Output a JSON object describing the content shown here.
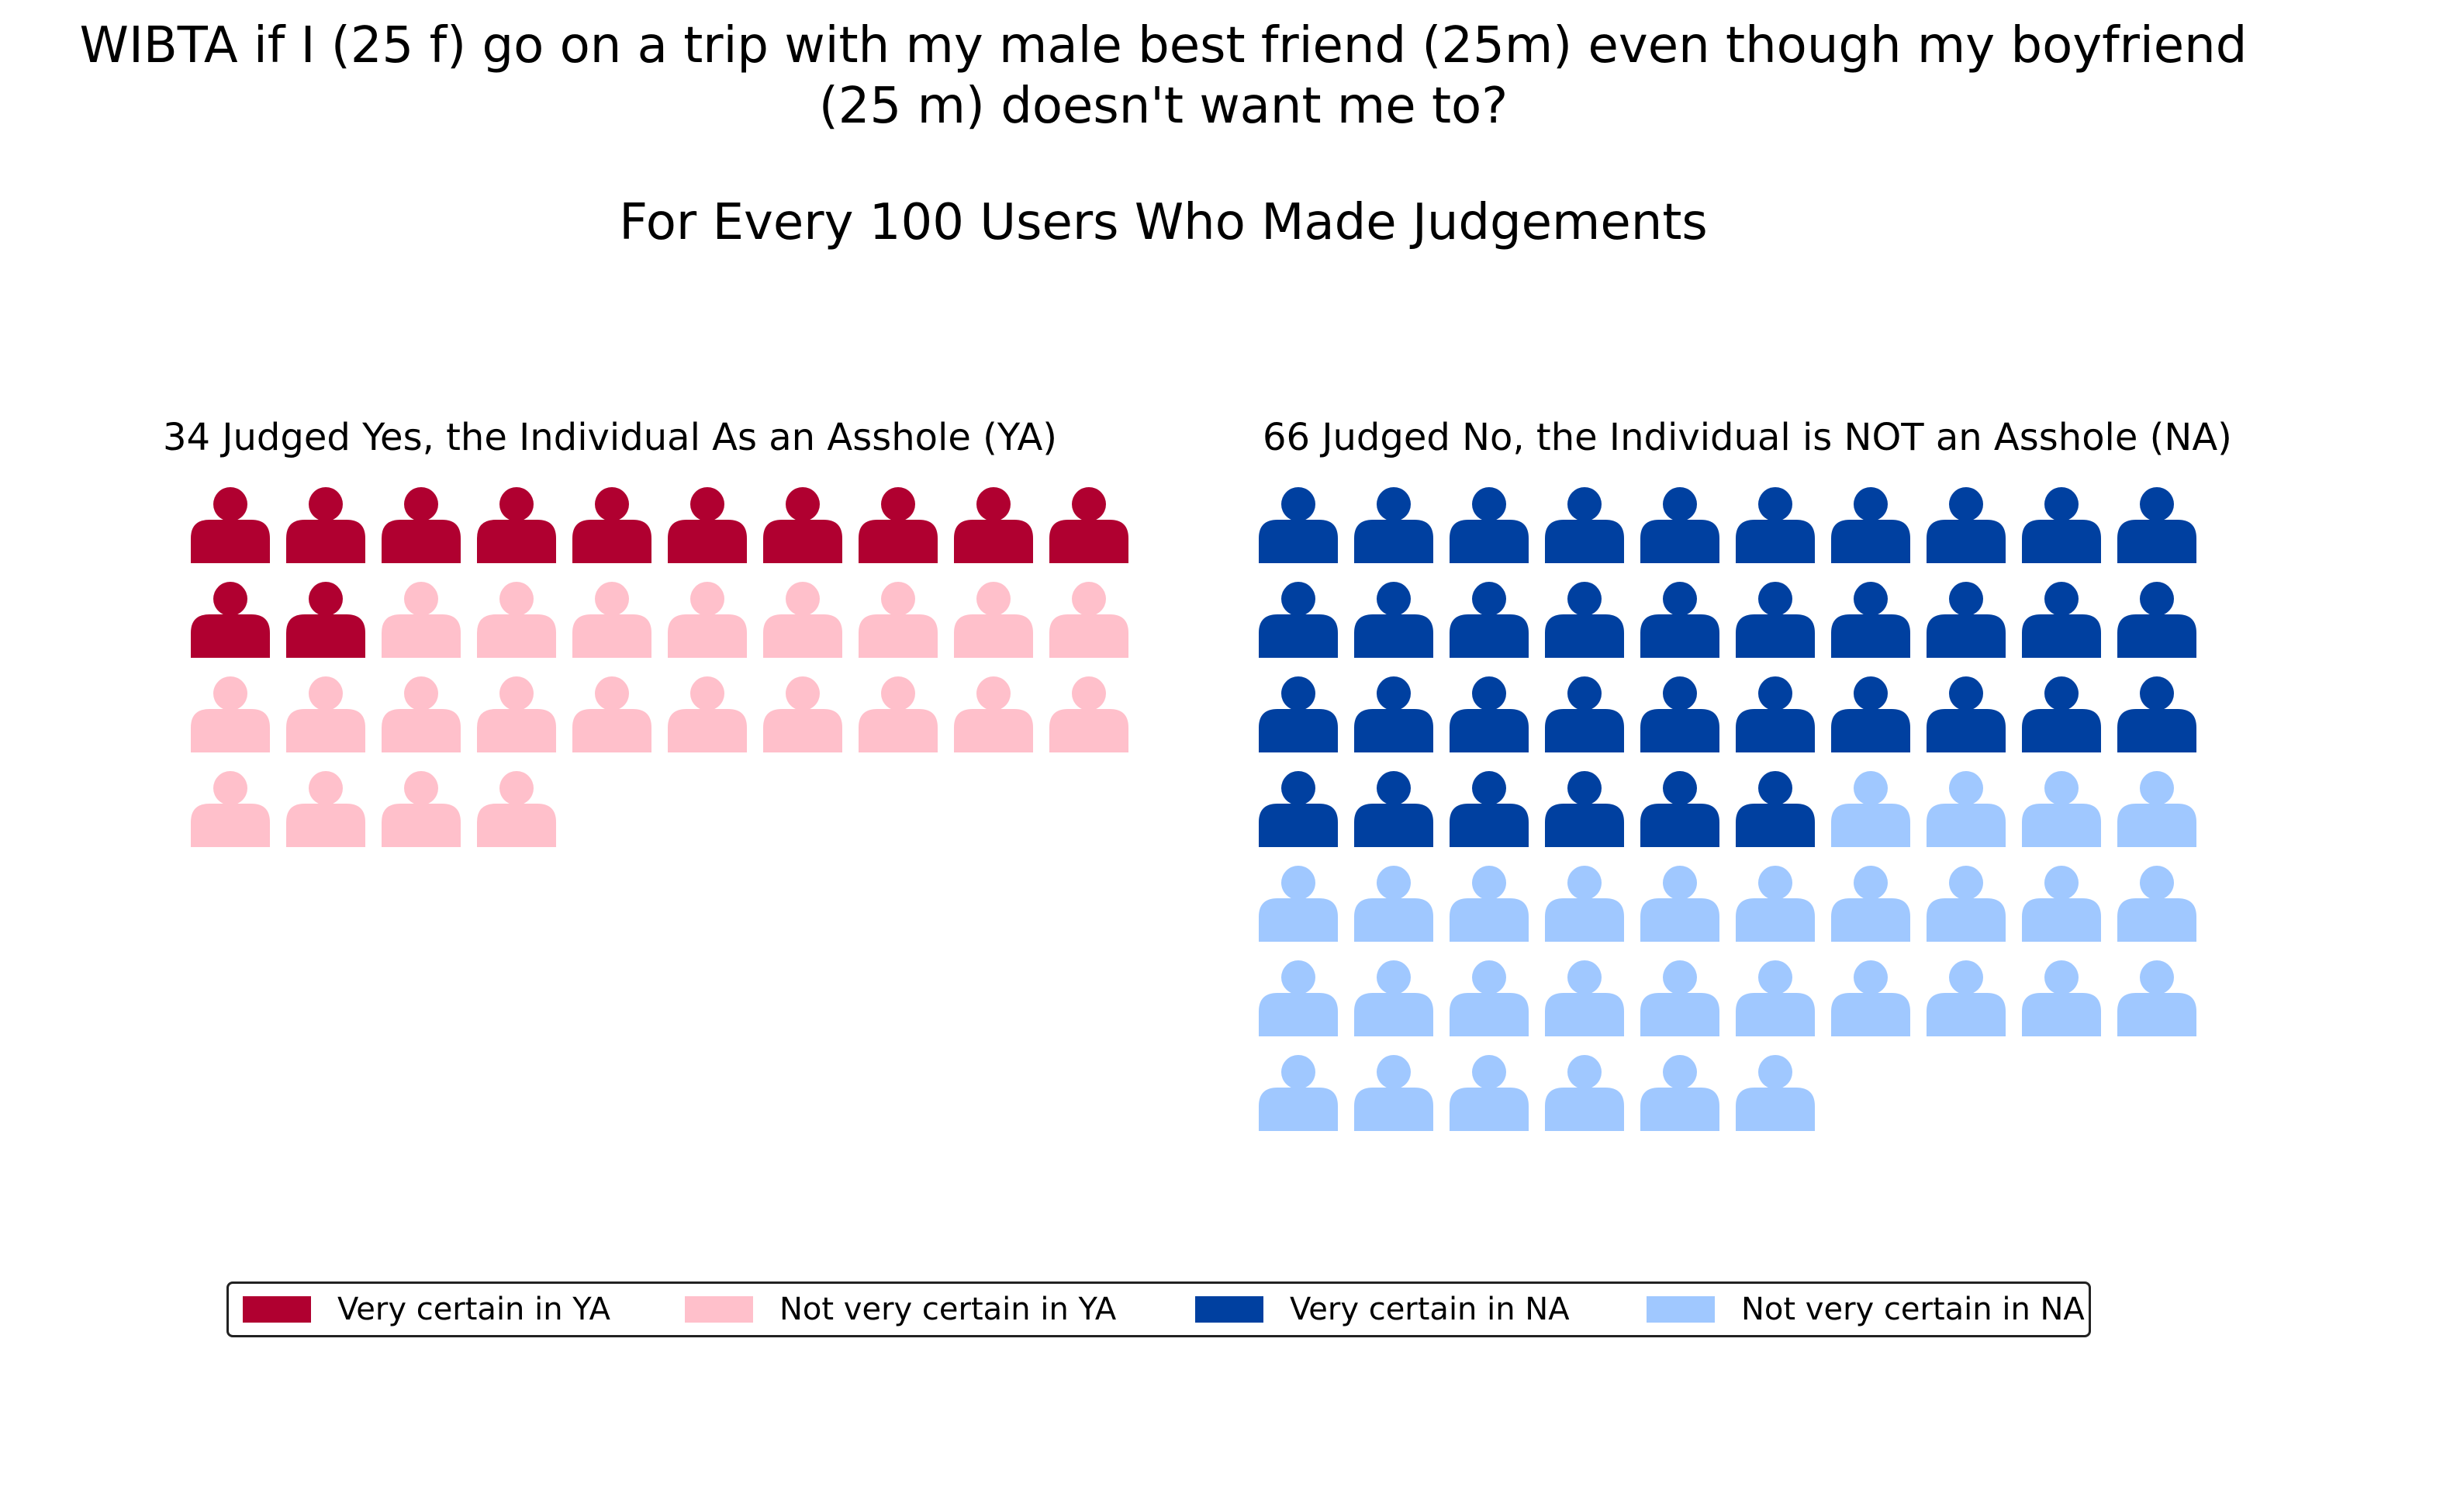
{
  "title": {
    "line1": "WIBTA if I (25 f) go on a trip with my male best friend (25m) even though my boyfriend",
    "line2": "(25 m) doesn't want me to?",
    "subtitle": "For Every 100 Users Who Made Judgements"
  },
  "chart_data": {
    "type": "pictograph",
    "unit": "users",
    "per": 100,
    "panels": [
      {
        "title": "34 Judged Yes, the Individual As an Asshole (YA)",
        "total": 34,
        "categories": [
          {
            "label": "Very certain in YA",
            "count": 12,
            "color": "#b00030"
          },
          {
            "label": "Not very certain in YA",
            "count": 22,
            "color": "#ffc0cb"
          }
        ]
      },
      {
        "title": "66 Judged No, the Individual is NOT an Asshole (NA)",
        "total": 66,
        "categories": [
          {
            "label": "Very certain in NA",
            "count": 36,
            "color": "#0040a0"
          },
          {
            "label": "Not very certain in NA",
            "count": 30,
            "color": "#a0c8ff"
          }
        ]
      }
    ],
    "legend": {
      "placement": "bottom",
      "entries": [
        {
          "label": "Very certain in YA",
          "color": "#b00030"
        },
        {
          "label": "Not very certain in YA",
          "color": "#ffc0cb"
        },
        {
          "label": "Very certain in NA",
          "color": "#0040a0"
        },
        {
          "label": "Not very certain in NA",
          "color": "#a0c8ff"
        }
      ]
    },
    "icon": "person-icon"
  }
}
